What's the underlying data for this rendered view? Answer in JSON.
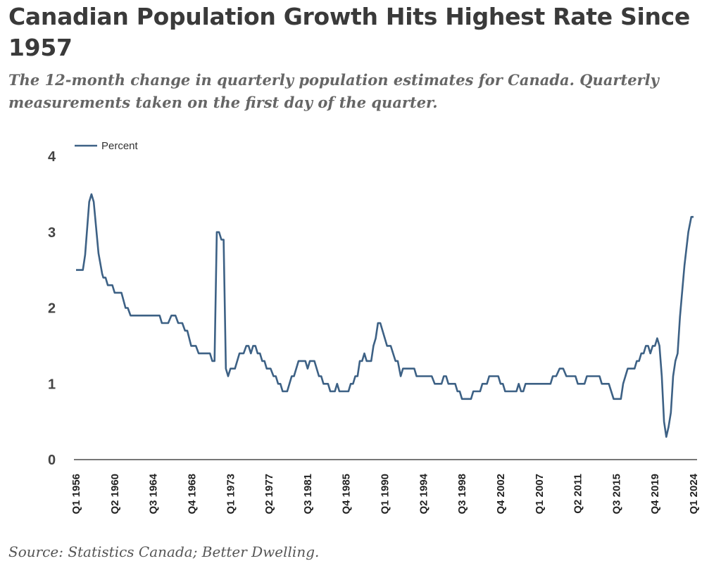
{
  "header": {
    "title": "Canadian Population Growth Hits Highest Rate Since 1957",
    "subtitle": "The 12-month change in quarterly population estimates for Canada. Quarterly measurements taken on the first day of the quarter."
  },
  "footer": {
    "source": "Source: Statistics Canada; Better Dwelling."
  },
  "chart_data": {
    "type": "line",
    "title": "Canadian Population Growth Hits Highest Rate Since 1957",
    "xlabel": "",
    "ylabel": "",
    "ylim": [
      0,
      4
    ],
    "yticks": [
      "0",
      "1",
      "2",
      "3",
      "4"
    ],
    "x_start": "Q1 1956",
    "x_end": "Q1 2024",
    "x_quarters": 272,
    "xtick_labels": [
      "Q1 1956",
      "Q2 1960",
      "Q3 1964",
      "Q4 1968",
      "Q1 1973",
      "Q2 1977",
      "Q3 1981",
      "Q4 1985",
      "Q1 1990",
      "Q2 1994",
      "Q3 1998",
      "Q4 2002",
      "Q1 2007",
      "Q2 2011",
      "Q3 2015",
      "Q4 2019",
      "Q1 2024"
    ],
    "xtick_every_quarters": 17,
    "grid": false,
    "legend": {
      "position": "top-left",
      "entries": [
        "Percent"
      ]
    },
    "series_color": "#3d6185",
    "series": [
      {
        "name": "Percent",
        "points_quarter_index_value": [
          [
            0,
            2.5
          ],
          [
            3,
            2.5
          ],
          [
            4,
            2.7
          ],
          [
            5.8,
            3.4
          ],
          [
            6.8,
            3.5
          ],
          [
            7.8,
            3.4
          ],
          [
            9.9,
            2.72
          ],
          [
            11.5,
            2.45
          ],
          [
            12,
            2.4
          ],
          [
            13,
            2.4
          ],
          [
            14,
            2.3
          ],
          [
            16,
            2.3
          ],
          [
            17,
            2.2
          ],
          [
            20,
            2.2
          ],
          [
            21.8,
            2.0
          ],
          [
            22.8,
            2.0
          ],
          [
            24,
            1.9
          ],
          [
            36.8,
            1.9
          ],
          [
            37.8,
            1.8
          ],
          [
            40.6,
            1.8
          ],
          [
            42,
            1.9
          ],
          [
            43.8,
            1.9
          ],
          [
            45,
            1.8
          ],
          [
            46.8,
            1.8
          ],
          [
            48,
            1.7
          ],
          [
            49,
            1.7
          ],
          [
            50.7,
            1.5
          ],
          [
            52.8,
            1.5
          ],
          [
            54,
            1.4
          ],
          [
            59,
            1.4
          ],
          [
            60,
            1.3
          ],
          [
            61,
            1.3
          ],
          [
            62,
            3.0
          ],
          [
            63,
            3.0
          ],
          [
            64,
            2.9
          ],
          [
            65,
            2.9
          ],
          [
            66,
            1.2
          ],
          [
            67,
            1.1
          ],
          [
            68,
            1.2
          ],
          [
            70,
            1.2
          ],
          [
            72,
            1.4
          ],
          [
            73.8,
            1.4
          ],
          [
            75,
            1.5
          ],
          [
            76,
            1.5
          ],
          [
            77,
            1.4
          ],
          [
            78,
            1.5
          ],
          [
            79,
            1.5
          ],
          [
            80,
            1.4
          ],
          [
            81,
            1.4
          ],
          [
            82,
            1.3
          ],
          [
            83,
            1.3
          ],
          [
            84,
            1.2
          ],
          [
            85.7,
            1.2
          ],
          [
            87,
            1.1
          ],
          [
            88,
            1.1
          ],
          [
            89,
            1.0
          ],
          [
            90,
            1.0
          ],
          [
            91,
            0.9
          ],
          [
            93,
            0.9
          ],
          [
            95,
            1.1
          ],
          [
            96,
            1.1
          ],
          [
            98,
            1.3
          ],
          [
            101,
            1.3
          ],
          [
            102,
            1.2
          ],
          [
            103,
            1.3
          ],
          [
            105,
            1.3
          ],
          [
            107,
            1.1
          ],
          [
            108,
            1.1
          ],
          [
            109,
            1.0
          ],
          [
            111,
            1.0
          ],
          [
            112,
            0.9
          ],
          [
            114,
            0.9
          ],
          [
            115,
            1.0
          ],
          [
            116,
            0.9
          ],
          [
            120,
            0.9
          ],
          [
            121,
            1.0
          ],
          [
            122,
            1.0
          ],
          [
            123,
            1.1
          ],
          [
            124,
            1.1
          ],
          [
            125,
            1.3
          ],
          [
            126,
            1.3
          ],
          [
            127,
            1.4
          ],
          [
            128,
            1.3
          ],
          [
            130,
            1.3
          ],
          [
            131,
            1.5
          ],
          [
            132,
            1.6
          ],
          [
            133,
            1.8
          ],
          [
            134,
            1.8
          ],
          [
            137,
            1.5
          ],
          [
            138.6,
            1.5
          ],
          [
            140.7,
            1.3
          ],
          [
            141.7,
            1.3
          ],
          [
            143,
            1.1
          ],
          [
            144,
            1.2
          ],
          [
            149,
            1.2
          ],
          [
            150,
            1.1
          ],
          [
            156.7,
            1.1
          ],
          [
            158,
            1.0
          ],
          [
            161,
            1.0
          ],
          [
            162,
            1.1
          ],
          [
            163,
            1.1
          ],
          [
            164,
            1.0
          ],
          [
            167,
            1.0
          ],
          [
            168,
            0.9
          ],
          [
            169,
            0.9
          ],
          [
            170,
            0.8
          ],
          [
            174,
            0.8
          ],
          [
            175,
            0.9
          ],
          [
            178,
            0.9
          ],
          [
            179,
            1.0
          ],
          [
            181,
            1.0
          ],
          [
            182,
            1.1
          ],
          [
            186,
            1.1
          ],
          [
            187,
            1.0
          ],
          [
            188,
            1.0
          ],
          [
            189,
            0.9
          ],
          [
            194,
            0.9
          ],
          [
            195,
            1.0
          ],
          [
            196,
            0.9
          ],
          [
            197,
            0.9
          ],
          [
            198,
            1.0
          ],
          [
            209,
            1.0
          ],
          [
            210,
            1.1
          ],
          [
            211.5,
            1.1
          ],
          [
            213,
            1.2
          ],
          [
            214.6,
            1.2
          ],
          [
            216,
            1.1
          ],
          [
            220,
            1.1
          ],
          [
            221,
            1.0
          ],
          [
            224,
            1.0
          ],
          [
            225,
            1.1
          ],
          [
            230.6,
            1.1
          ],
          [
            231.6,
            1.0
          ],
          [
            234.7,
            1.0
          ],
          [
            236.8,
            0.8
          ],
          [
            240,
            0.8
          ],
          [
            241,
            1.0
          ],
          [
            243,
            1.2
          ],
          [
            246,
            1.2
          ],
          [
            247,
            1.3
          ],
          [
            248,
            1.3
          ],
          [
            249,
            1.4
          ],
          [
            250,
            1.4
          ],
          [
            251,
            1.5
          ],
          [
            252,
            1.5
          ],
          [
            253,
            1.4
          ],
          [
            254,
            1.5
          ],
          [
            255,
            1.5
          ],
          [
            256,
            1.6
          ],
          [
            257,
            1.5
          ],
          [
            258,
            1.1
          ],
          [
            259,
            0.5
          ],
          [
            260,
            0.3
          ],
          [
            261,
            0.43
          ],
          [
            262,
            0.62
          ],
          [
            263,
            1.1
          ],
          [
            264,
            1.3
          ],
          [
            265,
            1.4
          ],
          [
            266,
            1.88
          ],
          [
            268,
            2.56
          ],
          [
            269.7,
            3.0
          ],
          [
            271,
            3.2
          ],
          [
            272,
            3.2
          ]
        ]
      }
    ]
  }
}
